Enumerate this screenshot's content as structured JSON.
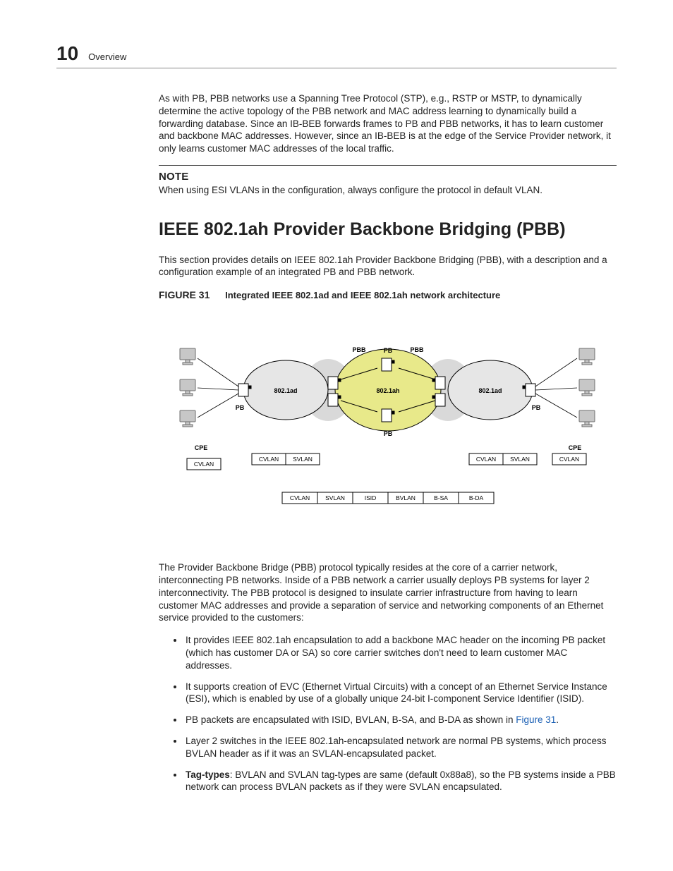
{
  "header": {
    "page_number": "10",
    "section": "Overview"
  },
  "intro_para": "As with PB, PBB networks use a Spanning Tree Protocol (STP), e.g., RSTP or MSTP, to dynamically determine the active topology of the PBB network and MAC address learning to dynamically build a forwarding database. Since an IB-BEB forwards frames to PB and PBB networks, it has to learn customer and backbone MAC addresses. However, since an IB-BEB is at the edge of the Service Provider network, it only learns customer MAC addresses of the local traffic.",
  "note": {
    "label": "NOTE",
    "text": "When using ESI VLANs in the configuration, always configure the protocol in default VLAN."
  },
  "heading": "IEEE 802.1ah Provider Backbone Bridging (PBB)",
  "sec_para": "This section provides details on IEEE 802.1ah Provider Backbone Bridging (PBB), with a description and a configuration example of an integrated PB and PBB network.",
  "figure": {
    "tag": "FIGURE 31",
    "title": "Integrated IEEE 802.1ad and IEEE 802.1ah network architecture",
    "colors": {
      "bg": "#ffffff",
      "ad_fill": "#e6e6e6",
      "ah_fill": "#e8e98a",
      "outline": "#000000",
      "pbb_ellipse": "#d9d9d9",
      "box_fill": "#ffffff",
      "box_stroke": "#000000",
      "cpe_grey": "#9c9c9c"
    },
    "labels": {
      "pbb": "PBB",
      "pb": "PB",
      "ad": "802.1ad",
      "ah": "802.1ah",
      "cpe": "CPE",
      "cvlan": "CVLAN",
      "svlan": "SVLAN",
      "isid": "ISID",
      "bvlan": "BVLAN",
      "bsa": "B-SA",
      "bda": "B-DA"
    },
    "tag_row1": [
      "CVLAN",
      "SVLAN"
    ],
    "tag_row2": [
      "CVLAN",
      "SVLAN",
      "ISID",
      "BVLAN",
      "B-SA",
      "B-DA"
    ]
  },
  "after_fig_para": "The Provider Backbone Bridge (PBB) protocol typically resides at the core of a carrier network, interconnecting PB networks. Inside of a PBB network a carrier usually deploys PB systems for layer 2 interconnectivity. The PBB protocol is designed to insulate carrier infrastructure from having to learn customer MAC addresses and provide a separation of service and networking components of an Ethernet service provided to the customers:",
  "bullets": [
    {
      "text": "It provides IEEE 802.1ah encapsulation to add a backbone MAC header on the incoming PB packet (which has customer DA or SA) so core carrier switches don't need to learn customer MAC addresses."
    },
    {
      "text": "It supports creation of EVC (Ethernet Virtual Circuits) with a concept of an Ethernet Service Instance (ESI), which is enabled by use of a globally unique 24-bit I-component Service Identifier (ISID)."
    },
    {
      "pre": "PB packets are encapsulated with ISID, BVLAN, B-SA, and B-DA as shown in ",
      "link": "Figure 31",
      "post": "."
    },
    {
      "text": "Layer 2 switches in the IEEE 802.1ah-encapsulated network are normal PB systems, which process BVLAN header as if it was an SVLAN-encapsulated packet."
    },
    {
      "bold": "Tag-types",
      "text": ": BVLAN and SVLAN tag-types are same (default 0x88a8), so the PB systems inside a PBB network can process BVLAN packets as if they were SVLAN encapsulated."
    }
  ]
}
